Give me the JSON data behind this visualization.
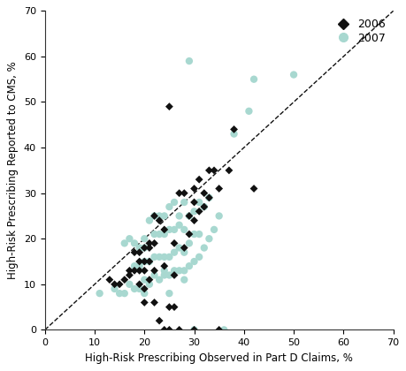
{
  "x2006": [
    13,
    14,
    15,
    16,
    17,
    17,
    18,
    18,
    19,
    19,
    19,
    19,
    20,
    20,
    20,
    20,
    21,
    21,
    21,
    21,
    22,
    22,
    22,
    23,
    23,
    24,
    24,
    25,
    25,
    26,
    26,
    27,
    27,
    28,
    28,
    29,
    29,
    30,
    30,
    30,
    31,
    31,
    32,
    32,
    33,
    33,
    34,
    35,
    37,
    38,
    42,
    20,
    22,
    24,
    25,
    26,
    30,
    35
  ],
  "y2006": [
    11,
    10,
    10,
    11,
    12,
    13,
    13,
    17,
    10,
    13,
    15,
    17,
    9,
    13,
    15,
    18,
    11,
    15,
    18,
    19,
    13,
    19,
    25,
    2,
    24,
    14,
    22,
    5,
    49,
    12,
    19,
    30,
    0,
    18,
    30,
    21,
    25,
    24,
    28,
    31,
    26,
    33,
    27,
    30,
    29,
    35,
    35,
    31,
    35,
    44,
    31,
    6,
    6,
    0,
    0,
    5,
    0,
    0
  ],
  "x2007": [
    11,
    14,
    15,
    16,
    16,
    17,
    17,
    18,
    18,
    18,
    19,
    19,
    19,
    20,
    20,
    20,
    20,
    20,
    21,
    21,
    21,
    22,
    22,
    22,
    22,
    23,
    23,
    23,
    23,
    24,
    24,
    24,
    24,
    24,
    25,
    25,
    25,
    25,
    25,
    26,
    26,
    26,
    26,
    27,
    27,
    27,
    27,
    28,
    28,
    28,
    28,
    28,
    29,
    29,
    29,
    29,
    30,
    30,
    30,
    30,
    31,
    31,
    31,
    32,
    32,
    33,
    33,
    34,
    35,
    36,
    38,
    41,
    42,
    50
  ],
  "y2007": [
    8,
    9,
    8,
    8,
    19,
    10,
    20,
    9,
    14,
    19,
    9,
    14,
    18,
    8,
    11,
    15,
    18,
    20,
    10,
    15,
    24,
    12,
    16,
    21,
    25,
    11,
    16,
    21,
    25,
    12,
    16,
    21,
    25,
    13,
    12,
    16,
    22,
    27,
    8,
    13,
    17,
    22,
    28,
    13,
    18,
    23,
    25,
    13,
    17,
    22,
    28,
    11,
    14,
    19,
    25,
    59,
    15,
    21,
    26,
    0,
    16,
    21,
    28,
    18,
    27,
    20,
    29,
    22,
    25,
    0,
    43,
    48,
    55,
    56
  ],
  "xlim": [
    0,
    70
  ],
  "ylim": [
    0,
    70
  ],
  "xticks": [
    0,
    10,
    20,
    30,
    40,
    50,
    60,
    70
  ],
  "yticks": [
    0,
    10,
    20,
    30,
    40,
    50,
    60,
    70
  ],
  "xlabel": "High-Risk Prescribing Observed in Part D Claims, %",
  "ylabel": "High-Risk Prescribing Reported to CMS, %",
  "color_2006": "#111111",
  "color_2007": "#a8d8d0",
  "marker_2006": "D",
  "marker_2007": "o",
  "marker_size_2006": 4.5,
  "marker_size_2007": 6.0,
  "legend_labels": [
    "2006",
    "2007"
  ],
  "diag_line_color": "#111111",
  "background_color": "#ffffff"
}
